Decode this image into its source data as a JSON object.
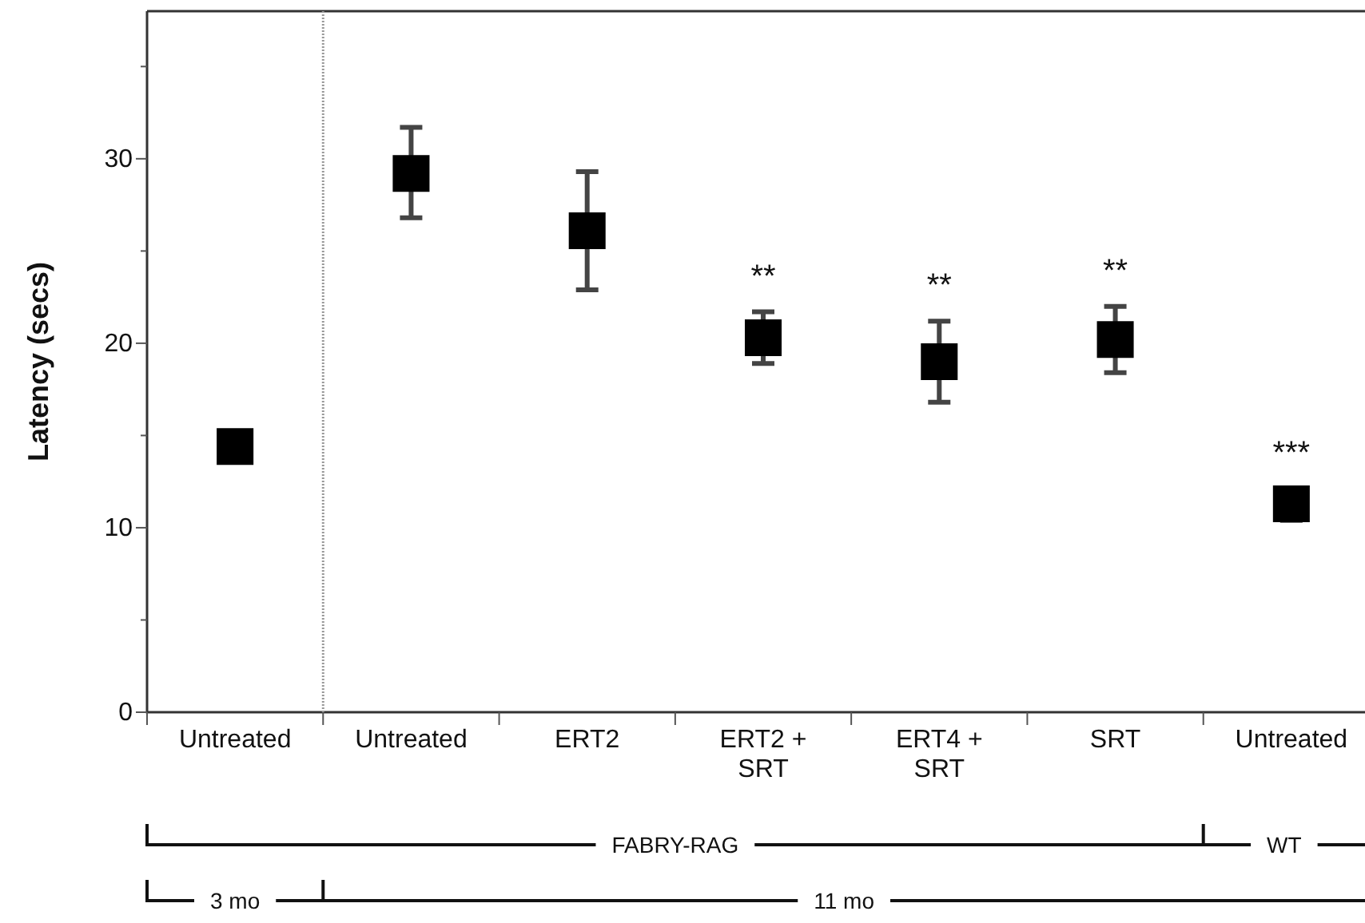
{
  "chart_data": {
    "type": "scatter",
    "ylabel": "Latency (secs)",
    "categories": [
      "Untreated",
      "Untreated",
      "ERT2",
      "ERT2 + SRT",
      "ERT4 + SRT",
      "SRT",
      "Untreated"
    ],
    "series": [
      {
        "color": "#000000",
        "values": [
          14.4,
          29.2,
          26.1,
          20.3,
          19.0,
          20.2,
          11.3
        ],
        "errors": [
          null,
          [
            26.8,
            31.7
          ],
          [
            22.9,
            29.3
          ],
          [
            18.9,
            21.7
          ],
          [
            16.8,
            21.2
          ],
          [
            18.4,
            22.0
          ],
          [
            10.4,
            12.1
          ]
        ]
      }
    ],
    "marker": "square",
    "ylim": [
      0,
      38
    ],
    "yticks": [
      0,
      {
        "value": 5,
        "label": null
      },
      10,
      {
        "value": 15,
        "label": null
      },
      20,
      {
        "value": 25,
        "label": null
      },
      30,
      {
        "value": 35,
        "label": null
      }
    ],
    "annotations": [
      "**",
      "**",
      "**",
      "***",
      "FABRY-RAG",
      "WT",
      "3 mo",
      "11 mo"
    ]
  }
}
